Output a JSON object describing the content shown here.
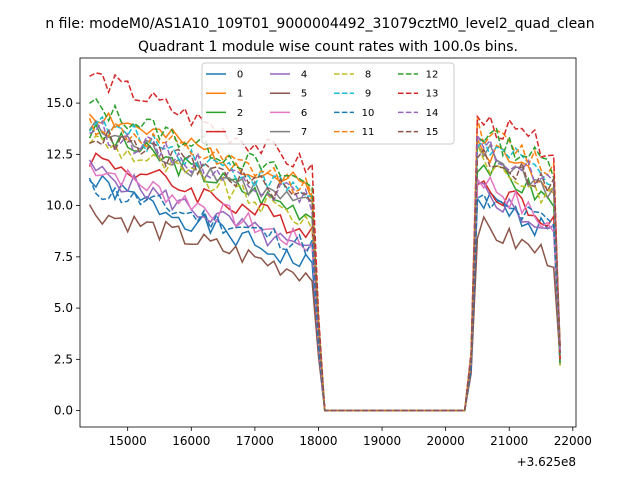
{
  "chart_data": {
    "type": "line",
    "suptitle": "n file: modeM0/AS1A10_109T01_9000004492_31079cztM0_level2_quad_clean",
    "title": "Quadrant 1 module wise count rates with 100.0s bins.",
    "xlabel": "",
    "ylabel": "",
    "x_offset_label": "+3.625e8",
    "xlim": [
      14250,
      22050
    ],
    "ylim": [
      -0.8,
      17.2
    ],
    "x_ticks": [
      15000,
      16000,
      17000,
      18000,
      19000,
      20000,
      21000,
      22000
    ],
    "y_ticks": [
      0.0,
      2.5,
      5.0,
      7.5,
      10.0,
      12.5,
      15.0
    ],
    "grid": false,
    "legend": {
      "location": "top-center",
      "columns": 4
    },
    "segments": {
      "seg1_x": [
        14400,
        17900
      ],
      "drop_x": [
        17900,
        18100
      ],
      "zero_x": [
        18100,
        20300
      ],
      "rise_x": [
        20300,
        20500
      ],
      "seg2_x": [
        20500,
        21800
      ]
    },
    "series": [
      {
        "name": "0",
        "color": "#1f77b4",
        "dash": "solid",
        "start": 11.2,
        "end": 7.0,
        "start2": 10.5,
        "end2": 8.5
      },
      {
        "name": "1",
        "color": "#ff7f0e",
        "dash": "solid",
        "start": 14.6,
        "end": 10.8,
        "start2": 13.0,
        "end2": 11.0
      },
      {
        "name": "2",
        "color": "#2ca02c",
        "dash": "solid",
        "start": 13.6,
        "end": 9.6,
        "start2": 12.2,
        "end2": 10.0
      },
      {
        "name": "3",
        "color": "#d62728",
        "dash": "solid",
        "start": 12.4,
        "end": 8.8,
        "start2": 11.2,
        "end2": 9.2
      },
      {
        "name": "4",
        "color": "#9467bd",
        "dash": "solid",
        "start": 11.8,
        "end": 7.6,
        "start2": 10.9,
        "end2": 8.4
      },
      {
        "name": "5",
        "color": "#8c564b",
        "dash": "solid",
        "start": 9.8,
        "end": 6.6,
        "start2": 9.0,
        "end2": 7.3
      },
      {
        "name": "6",
        "color": "#e377c2",
        "dash": "solid",
        "start": 12.0,
        "end": 8.0,
        "start2": 11.5,
        "end2": 8.6
      },
      {
        "name": "7",
        "color": "#7f7f7f",
        "dash": "solid",
        "start": 13.8,
        "end": 9.8,
        "start2": 12.8,
        "end2": 10.5
      },
      {
        "name": "8",
        "color": "#bcbd22",
        "dash": "dashed",
        "start": 13.3,
        "end": 9.2,
        "start2": 12.4,
        "end2": 10.2
      },
      {
        "name": "9",
        "color": "#17becf",
        "dash": "dashed",
        "start": 14.1,
        "end": 10.5,
        "start2": 13.1,
        "end2": 11.2
      },
      {
        "name": "10",
        "color": "#1f77b4",
        "dash": "dashed",
        "start": 10.9,
        "end": 8.0,
        "start2": 10.2,
        "end2": 9.0
      },
      {
        "name": "11",
        "color": "#ff7f0e",
        "dash": "dashed",
        "start": 14.0,
        "end": 10.9,
        "start2": 13.7,
        "end2": 11.6
      },
      {
        "name": "12",
        "color": "#2ca02c",
        "dash": "dashed",
        "start": 14.9,
        "end": 11.0,
        "start2": 13.6,
        "end2": 11.8
      },
      {
        "name": "13",
        "color": "#d62728",
        "dash": "dashed",
        "start": 16.4,
        "end": 11.8,
        "start2": 14.2,
        "end2": 12.6
      },
      {
        "name": "14",
        "color": "#9467bd",
        "dash": "dashed",
        "start": 13.8,
        "end": 10.2,
        "start2": 12.9,
        "end2": 11.0
      },
      {
        "name": "15",
        "color": "#8c564b",
        "dash": "dashed",
        "start": 13.5,
        "end": 10.3,
        "start2": 12.6,
        "end2": 10.8
      }
    ]
  }
}
